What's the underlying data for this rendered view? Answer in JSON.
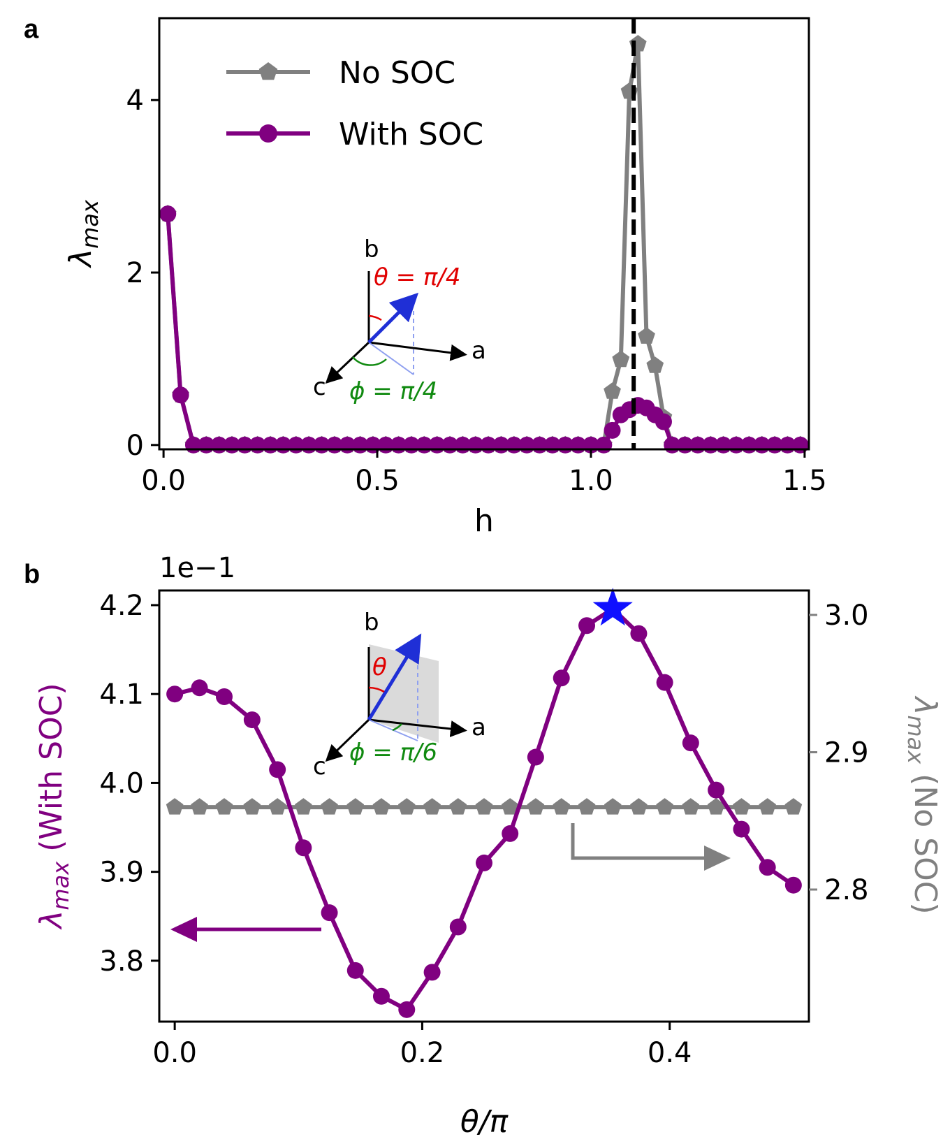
{
  "chart_data": [
    {
      "panel": "a",
      "type": "line",
      "xlabel": "h",
      "ylabel_main": "λ",
      "ylabel_sub": "max",
      "xlim": [
        -0.01,
        1.51
      ],
      "ylim": [
        -0.05,
        4.95
      ],
      "xticks": [
        0.0,
        0.5,
        1.0,
        1.5
      ],
      "xtick_labels": [
        "0.0",
        "0.5",
        "1.0",
        "1.5"
      ],
      "yticks": [
        0,
        2,
        4
      ],
      "ytick_labels": [
        "0",
        "2",
        "4"
      ],
      "vline_x": 1.1,
      "legend_placement": "upper-left",
      "inset_labels": {
        "theta": "θ = π/4",
        "phi": "ϕ = π/4",
        "a": "a",
        "b": "b",
        "c": "c"
      },
      "series": [
        {
          "name": "No SOC",
          "color": "#808080",
          "marker": "pentagon",
          "x": [
            0.01,
            0.04,
            0.07,
            0.1,
            0.13,
            0.16,
            0.19,
            0.22,
            0.25,
            0.28,
            0.31,
            0.34,
            0.37,
            0.4,
            0.43,
            0.46,
            0.49,
            0.52,
            0.55,
            0.58,
            0.61,
            0.64,
            0.67,
            0.7,
            0.73,
            0.76,
            0.79,
            0.82,
            0.85,
            0.88,
            0.91,
            0.94,
            0.97,
            1.0,
            1.03,
            1.05,
            1.07,
            1.09,
            1.11,
            1.13,
            1.15,
            1.17,
            1.19,
            1.22,
            1.25,
            1.28,
            1.31,
            1.34,
            1.37,
            1.4,
            1.43,
            1.46,
            1.49
          ],
          "y": [
            2.68,
            0.58,
            0,
            0,
            0,
            0,
            0,
            0,
            0,
            0,
            0,
            0,
            0,
            0,
            0,
            0,
            0,
            0,
            0,
            0,
            0,
            0,
            0,
            0,
            0,
            0,
            0,
            0,
            0,
            0,
            0,
            0,
            0,
            0,
            0,
            0.62,
            0.99,
            4.1,
            4.65,
            1.26,
            0.92,
            0.32,
            0,
            0,
            0,
            0,
            0,
            0,
            0,
            0,
            0,
            0,
            0
          ]
        },
        {
          "name": "With SOC",
          "color": "#800080",
          "marker": "circle",
          "x": [
            0.01,
            0.04,
            0.07,
            0.1,
            0.13,
            0.16,
            0.19,
            0.22,
            0.25,
            0.28,
            0.31,
            0.34,
            0.37,
            0.4,
            0.43,
            0.46,
            0.49,
            0.52,
            0.55,
            0.58,
            0.61,
            0.64,
            0.67,
            0.7,
            0.73,
            0.76,
            0.79,
            0.82,
            0.85,
            0.88,
            0.91,
            0.94,
            0.97,
            1.0,
            1.03,
            1.05,
            1.07,
            1.09,
            1.11,
            1.13,
            1.15,
            1.17,
            1.19,
            1.22,
            1.25,
            1.28,
            1.31,
            1.34,
            1.37,
            1.4,
            1.43,
            1.46,
            1.49
          ],
          "y": [
            2.68,
            0.58,
            0,
            0,
            0,
            0,
            0,
            0,
            0,
            0,
            0,
            0,
            0,
            0,
            0,
            0,
            0,
            0,
            0,
            0,
            0,
            0,
            0,
            0,
            0,
            0,
            0,
            0,
            0,
            0,
            0,
            0,
            0,
            0,
            0,
            0.17,
            0.35,
            0.41,
            0.46,
            0.43,
            0.35,
            0.27,
            0,
            0,
            0,
            0,
            0,
            0,
            0,
            0,
            0,
            0,
            0
          ]
        }
      ]
    },
    {
      "panel": "b",
      "type": "line",
      "xlabel": "θ/π",
      "offset_text": "1e−1",
      "ylabel_left_main": "λ",
      "ylabel_left_sub": "max",
      "ylabel_left_rest": " (With SOC)",
      "ylabel_right_main": "λ",
      "ylabel_right_sub": "max",
      "ylabel_right_rest": " (No SOC)",
      "xlim": [
        -0.0125,
        0.5125
      ],
      "ylim_left": [
        3.7315,
        4.2165
      ],
      "ylim_right": [
        2.8,
        3.0
      ],
      "xticks": [
        0.0,
        0.2,
        0.4
      ],
      "xtick_labels": [
        "0.0",
        "0.2",
        "0.4"
      ],
      "yticks_left": [
        3.8,
        3.9,
        4.0,
        4.1,
        4.2
      ],
      "ytick_labels_left": [
        "3.8",
        "3.9",
        "4.0",
        "4.1",
        "4.2"
      ],
      "yticks_right": [
        2.8,
        2.9,
        3.0
      ],
      "ytick_labels_right": [
        "2.8",
        "2.9",
        "3.0"
      ],
      "star_point": {
        "x": 0.354,
        "y": 4.196
      },
      "inset_labels": {
        "theta": "θ",
        "phi": "ϕ = π/6",
        "a": "a",
        "b": "b",
        "c": "c"
      },
      "series": [
        {
          "name": "With SOC",
          "axis": "left",
          "color": "#800080",
          "marker": "circle",
          "x": [
            0.0,
            0.02,
            0.04,
            0.0625,
            0.083,
            0.104,
            0.125,
            0.146,
            0.167,
            0.1875,
            0.208,
            0.229,
            0.25,
            0.271,
            0.2917,
            0.3125,
            0.333,
            0.354,
            0.375,
            0.396,
            0.417,
            0.4375,
            0.458,
            0.479,
            0.5
          ],
          "y": [
            4.1,
            4.107,
            4.097,
            4.071,
            4.015,
            3.927,
            3.854,
            3.789,
            3.76,
            3.745,
            3.787,
            3.838,
            3.91,
            3.943,
            4.029,
            4.118,
            4.177,
            4.196,
            4.168,
            4.113,
            4.045,
            3.992,
            3.948,
            3.905,
            3.885
          ]
        },
        {
          "name": "No SOC",
          "axis": "right",
          "color": "#808080",
          "marker": "pentagon",
          "x": [
            0.0,
            0.02,
            0.04,
            0.0625,
            0.083,
            0.104,
            0.125,
            0.146,
            0.167,
            0.1875,
            0.208,
            0.229,
            0.25,
            0.271,
            0.2917,
            0.3125,
            0.333,
            0.354,
            0.375,
            0.396,
            0.417,
            0.4375,
            0.458,
            0.479,
            0.5
          ],
          "y": [
            2.86,
            2.86,
            2.86,
            2.86,
            2.86,
            2.86,
            2.86,
            2.86,
            2.86,
            2.86,
            2.86,
            2.86,
            2.86,
            2.86,
            2.86,
            2.86,
            2.86,
            2.86,
            2.86,
            2.86,
            2.86,
            2.86,
            2.86,
            2.86,
            2.86
          ]
        }
      ]
    }
  ]
}
